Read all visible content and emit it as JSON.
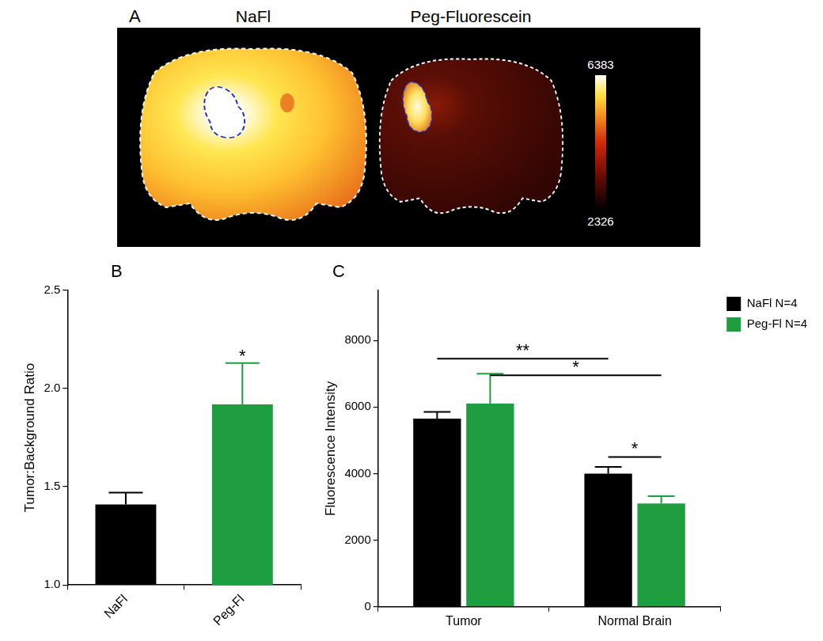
{
  "image_panel": {
    "panel": "A",
    "titles": [
      "NaFl",
      "Peg-Fluorescein"
    ],
    "colorbar": {
      "range": [
        2326,
        6383
      ],
      "ticks": [
        2326,
        6383
      ]
    }
  },
  "chart_data": [
    {
      "type": "bar",
      "panel": "B",
      "categories": [
        "NaFl",
        "Peg-Fl"
      ],
      "values": [
        1.41,
        1.92
      ],
      "errors": [
        0.06,
        0.21
      ],
      "colors": [
        "#000000",
        "#1e9e3e"
      ],
      "ylabel": "Tumor:Background Ratio",
      "ylim": [
        1,
        2.5
      ],
      "yticks": [
        {
          "value": 1,
          "label": "1.0"
        },
        {
          "value": 1.5,
          "label": "1.5"
        },
        {
          "value": 2,
          "label": "2.0"
        },
        {
          "value": 2.5,
          "label": "2.5"
        }
      ],
      "grid": false,
      "significance": [
        {
          "label": "*",
          "category": "Peg-Fl"
        }
      ]
    },
    {
      "type": "bar",
      "panel": "C",
      "categories": [
        "Tumor",
        "Normal Brain"
      ],
      "series": [
        {
          "name": "NaFl N=4",
          "color": "#000000",
          "values": [
            5650,
            4000
          ],
          "errors": [
            200,
            200
          ]
        },
        {
          "name": "Peg-Fl N=4",
          "color": "#1e9e3e",
          "values": [
            6100,
            3100
          ],
          "errors": [
            900,
            220
          ]
        }
      ],
      "ylabel": "Fluorescence Intensity",
      "ylim": [
        0,
        9500
      ],
      "yticks": [
        0,
        2000,
        4000,
        6000,
        8000
      ],
      "grid": false,
      "legend": "right",
      "significance": [
        {
          "label": "**",
          "y": 7450,
          "from": {
            "category": "Tumor",
            "series": "NaFl N=4"
          },
          "to": {
            "category": "Normal Brain",
            "series": "NaFl N=4"
          }
        },
        {
          "label": "*",
          "y": 6950,
          "from": {
            "category": "Tumor",
            "series": "Peg-Fl N=4"
          },
          "to": {
            "category": "Normal Brain",
            "series": "Peg-Fl N=4"
          }
        },
        {
          "label": "*",
          "y": 4500,
          "from": {
            "category": "Normal Brain",
            "series": "NaFl N=4"
          },
          "to": {
            "category": "Normal Brain",
            "series": "Peg-Fl N=4"
          }
        }
      ]
    }
  ]
}
